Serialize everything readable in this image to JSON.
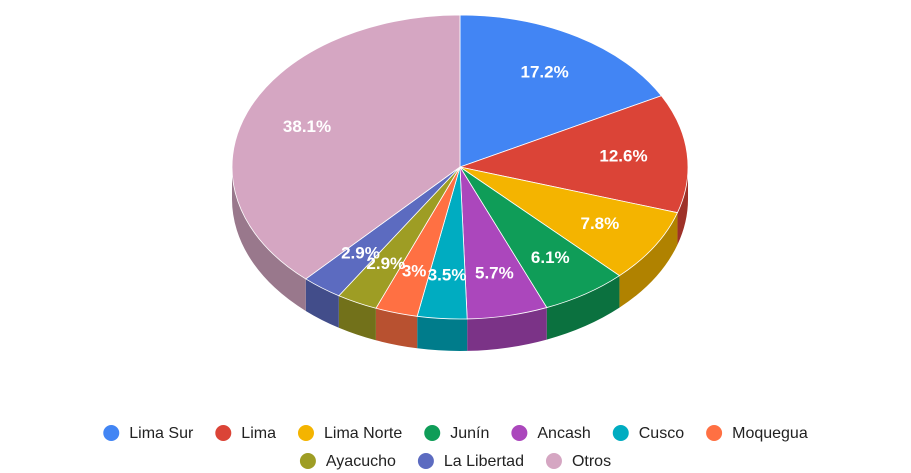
{
  "chart_data": {
    "type": "pie3d",
    "categories": [
      "Lima Sur",
      "Lima",
      "Lima Norte",
      "Junín",
      "Ancash",
      "Cusco",
      "Moquegua",
      "Ayacucho",
      "La Libertad",
      "Otros"
    ],
    "values": [
      17.2,
      12.6,
      7.8,
      6.1,
      5.7,
      3.5,
      3,
      2.9,
      2.9,
      38.1
    ],
    "value_labels": [
      "17.2%",
      "12.6%",
      "7.8%",
      "6.1%",
      "5.7%",
      "3.5%",
      "3%",
      "2.9%",
      "2.9%",
      "38.1%"
    ],
    "colors": [
      "#4285f4",
      "#db4437",
      "#f4b400",
      "#0f9d58",
      "#ab47bc",
      "#00acc1",
      "#ff7043",
      "#9e9d24",
      "#5c6bc0",
      "#d5a6c2"
    ],
    "legend": "bottom"
  }
}
